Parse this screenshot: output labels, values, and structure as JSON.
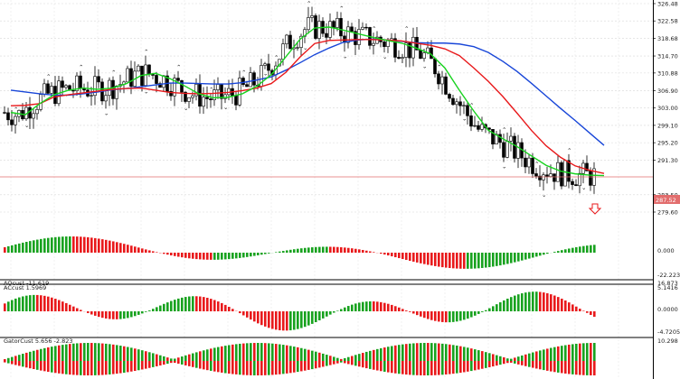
{
  "main": {
    "price_labels": [
      "326.48",
      "322.58",
      "318.68",
      "314.70",
      "310.88",
      "306.90",
      "303.00",
      "299.10",
      "295.20",
      "291.30",
      "283.50",
      "279.60"
    ],
    "current_price": "287.52",
    "colors": {
      "blue": "#1846d8",
      "red": "#e8191b",
      "green": "#18d21f",
      "price_line": "#e26d6d"
    }
  },
  "panes": [
    {
      "name": "ao",
      "title": "AOcust -11.619",
      "labels": [
        "16.873",
        "0.000",
        "-22.223"
      ]
    },
    {
      "name": "ac",
      "title": "ACcust 1.5969",
      "labels": [
        "5.1416",
        "0.0000",
        "-4.7205"
      ]
    },
    {
      "name": "gator",
      "title": "GatorCust 5.656 -2.823",
      "labels": [
        "10.298"
      ]
    }
  ],
  "chart_data": [
    {
      "type": "candlestick",
      "y_ticks": [
        326.48,
        322.58,
        318.68,
        314.7,
        310.88,
        306.9,
        303.0,
        299.1,
        295.2,
        291.3,
        283.5,
        279.6
      ],
      "current_price": 287.52,
      "series": [
        {
          "name": "blue-ma",
          "values": [
            307.0,
            306.6,
            306.2,
            305.9,
            305.9,
            306.2,
            306.6,
            307.1,
            307.4,
            307.8,
            308.2,
            308.6,
            308.6,
            308.5,
            308.4,
            308.4,
            308.7,
            309.3,
            310.0,
            311.5,
            313.2,
            315.0,
            316.5,
            317.8,
            318.3,
            318.5,
            318.3,
            318.0,
            317.7,
            317.6,
            317.6,
            317.4,
            316.8,
            315.5,
            313.5,
            311.2,
            308.5,
            305.7,
            302.9,
            300.2,
            297.4,
            294.6
          ]
        },
        {
          "name": "red-ma",
          "values": [
            303.5,
            303.6,
            304.0,
            305.5,
            306.0,
            306.4,
            306.8,
            307.2,
            307.4,
            307.5,
            307.0,
            306.5,
            306.3,
            306.2,
            306.3,
            306.5,
            306.9,
            307.5,
            308.5,
            311.0,
            314.5,
            317.5,
            318.2,
            318.3,
            318.4,
            318.4,
            318.3,
            318.1,
            317.6,
            317.1,
            316.3,
            314.8,
            312.0,
            309.0,
            305.6,
            301.8,
            297.9,
            294.5,
            291.9,
            290.0,
            289.0,
            288.3
          ]
        },
        {
          "name": "green-ma",
          "values": [
            302.0,
            301.5,
            304.0,
            306.0,
            307.0,
            307.5,
            307.2,
            307.5,
            308.5,
            310.3,
            310.8,
            309.6,
            308.0,
            306.2,
            305.3,
            305.4,
            306.2,
            307.9,
            310.5,
            314.5,
            318.5,
            321.0,
            321.2,
            320.5,
            319.7,
            318.9,
            318.2,
            317.6,
            316.5,
            315.2,
            312.0,
            307.0,
            302.3,
            298.0,
            296.1,
            294.3,
            292.2,
            290.1,
            288.8,
            288.2,
            287.9,
            287.8
          ]
        }
      ]
    },
    {
      "type": "bar",
      "name": "ao",
      "ylim": [
        -22.223,
        16.873
      ]
    },
    {
      "type": "bar",
      "name": "ac",
      "ylim": [
        -4.7205,
        5.1416
      ]
    },
    {
      "type": "bar",
      "name": "gator",
      "y_ticks": [
        10.298
      ]
    }
  ]
}
